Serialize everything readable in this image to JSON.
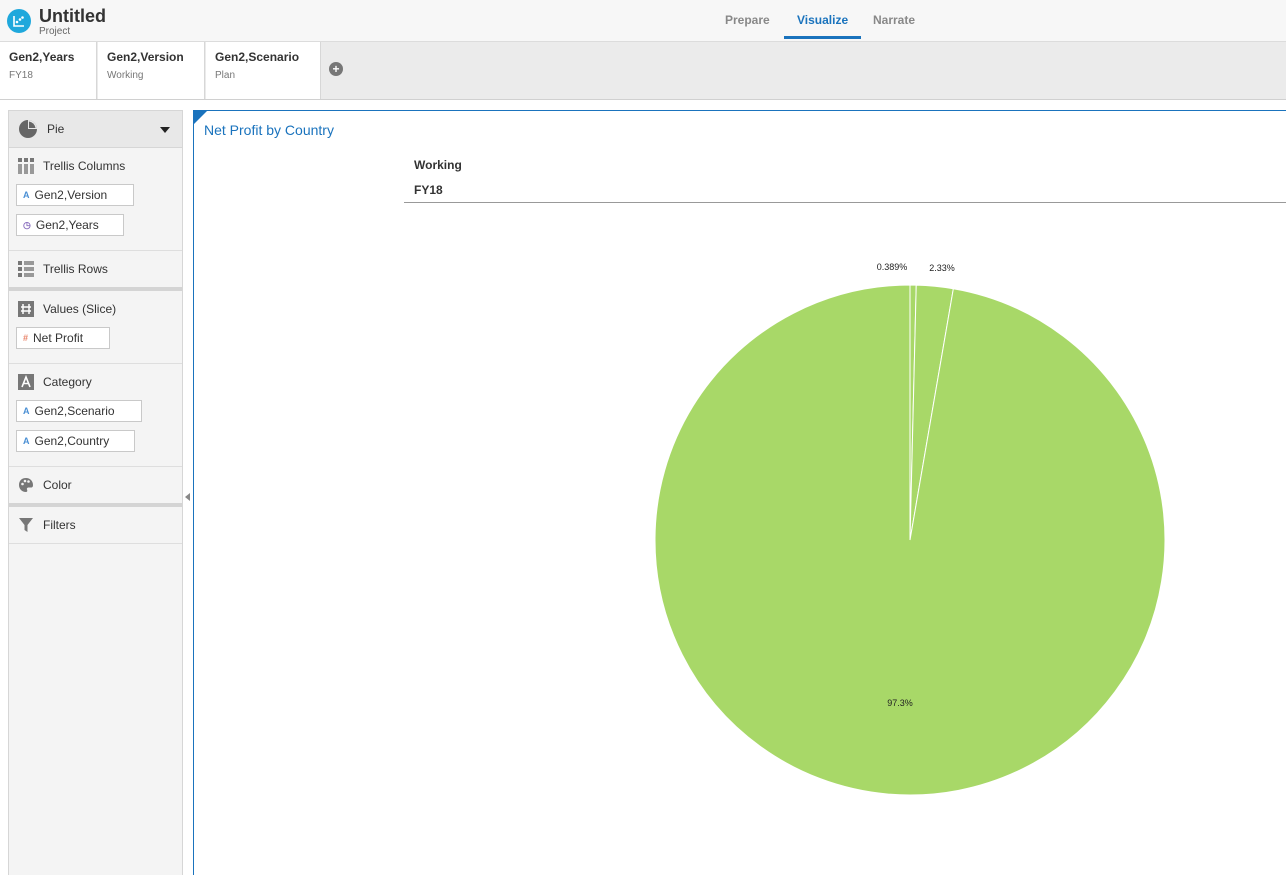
{
  "app": {
    "title": "Untitled",
    "subtitle": "Project"
  },
  "tabs": [
    {
      "label": "Prepare",
      "active": false
    },
    {
      "label": "Visualize",
      "active": true
    },
    {
      "label": "Narrate",
      "active": false
    }
  ],
  "filters": [
    {
      "name": "Gen2,Years",
      "value": "FY18"
    },
    {
      "name": "Gen2,Version",
      "value": "Working"
    },
    {
      "name": "Gen2,Scenario",
      "value": "Plan"
    }
  ],
  "panel": {
    "chart_type": "Pie",
    "trellis_columns": {
      "label": "Trellis Columns",
      "items": [
        "Gen2,Version",
        "Gen2,Years"
      ]
    },
    "trellis_rows": {
      "label": "Trellis Rows"
    },
    "values": {
      "label": "Values (Slice)",
      "items": [
        "Net Profit"
      ]
    },
    "category": {
      "label": "Category",
      "items": [
        "Gen2,Scenario",
        "Gen2,Country"
      ]
    },
    "color": {
      "label": "Color"
    },
    "filters": {
      "label": "Filters"
    }
  },
  "canvas": {
    "title": "Net Profit by Country",
    "trellis_header_1": "Working",
    "trellis_header_2": "FY18"
  },
  "colors": {
    "accent": "#1a73bd",
    "slice": "#a8d868",
    "logo": "#1fa8dc"
  },
  "chart_data": {
    "type": "pie",
    "slices": [
      {
        "value": 0.389,
        "label": "0.389%"
      },
      {
        "value": 2.33,
        "label": "2.33%"
      },
      {
        "value": 97.3,
        "label": "97.3%"
      }
    ],
    "color": "#a8d868"
  }
}
